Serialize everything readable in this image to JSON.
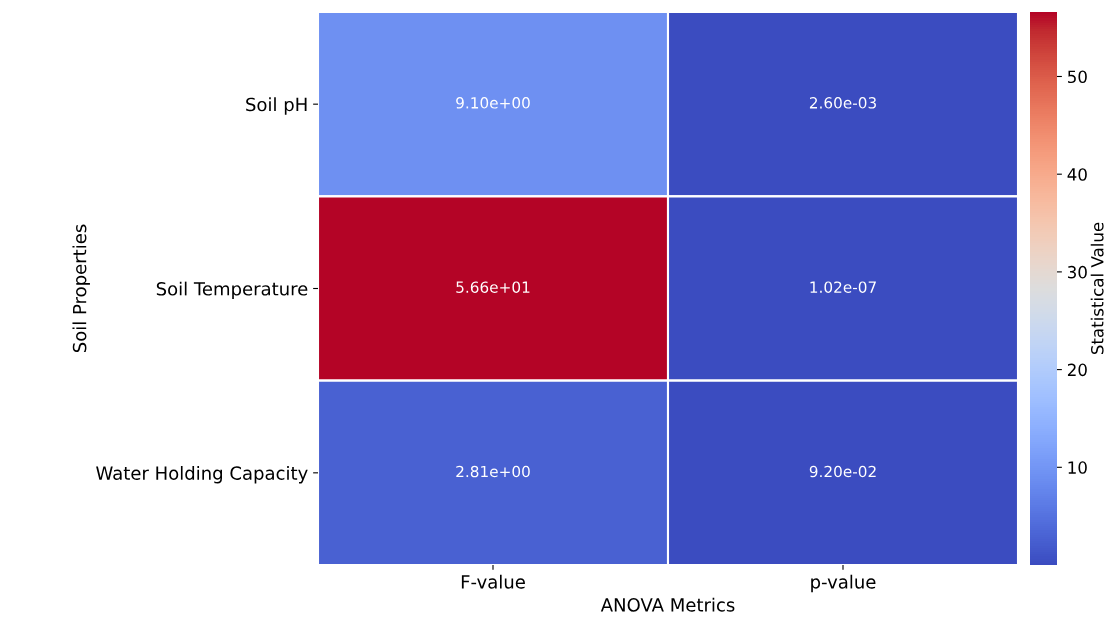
{
  "chart_data": {
    "type": "heatmap",
    "categories": [
      "F-value",
      "p-value"
    ],
    "y_categories": [
      "Soil pH",
      "Soil Temperature",
      "Water Holding Capacity"
    ],
    "cells": [
      [
        9.1,
        0.0026
      ],
      [
        56.6,
        1.02e-07
      ],
      [
        2.81,
        0.092
      ]
    ],
    "cell_labels": [
      [
        "9.10e+00",
        "2.60e-03"
      ],
      [
        "5.66e+01",
        "1.02e-07"
      ],
      [
        "2.81e+00",
        "9.20e-02"
      ]
    ],
    "xlabel": "ANOVA Metrics",
    "ylabel": "Soil Properties",
    "clabel": "Statistical Value",
    "clim": [
      1.02e-07,
      56.6
    ],
    "cticks": [
      10,
      20,
      30,
      40,
      50
    ]
  }
}
